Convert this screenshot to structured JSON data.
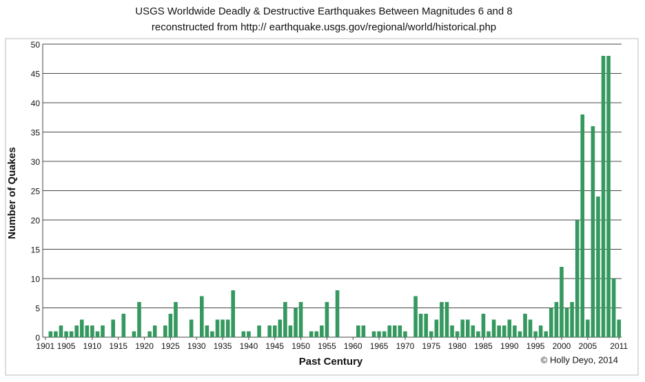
{
  "chart_data": {
    "type": "bar",
    "title": "USGS Worldwide Deadly & Destructive Earthquakes Between Magnitudes 6 and 8",
    "subtitle": "reconstructed from http:// earthquake.usgs.gov/regional/world/historical.php",
    "ylabel": "Number of Quakes",
    "xlabel": "Past Century",
    "credit": "© Holly Deyo, 2014",
    "categories": [
      "1901",
      null,
      null,
      null,
      "1905",
      null,
      null,
      null,
      null,
      "1910",
      null,
      null,
      null,
      null,
      "1915",
      null,
      null,
      null,
      null,
      "1920",
      null,
      null,
      null,
      null,
      "1925",
      null,
      null,
      null,
      null,
      "1930",
      null,
      null,
      null,
      null,
      "1935",
      null,
      null,
      null,
      null,
      "1940",
      null,
      null,
      null,
      null,
      "1945",
      null,
      null,
      null,
      null,
      "1950",
      null,
      null,
      null,
      null,
      "1955",
      null,
      null,
      null,
      null,
      "1960",
      null,
      null,
      null,
      null,
      "1965",
      null,
      null,
      null,
      null,
      "1970",
      null,
      null,
      null,
      null,
      "1975",
      null,
      null,
      null,
      null,
      "1980",
      null,
      null,
      null,
      null,
      "1985",
      null,
      null,
      null,
      null,
      "1990",
      null,
      null,
      null,
      null,
      "1995",
      null,
      null,
      null,
      null,
      "2000",
      null,
      null,
      null,
      null,
      "2005",
      null,
      null,
      null,
      null,
      null,
      "2011"
    ],
    "values": [
      0,
      1,
      1,
      2,
      1,
      1,
      2,
      3,
      2,
      2,
      1,
      2,
      0,
      3,
      0,
      4,
      0,
      1,
      6,
      0,
      1,
      2,
      0,
      2,
      4,
      6,
      0,
      0,
      3,
      0,
      7,
      2,
      1,
      3,
      3,
      3,
      8,
      0,
      1,
      1,
      0,
      2,
      0,
      2,
      2,
      3,
      6,
      2,
      5,
      6,
      0,
      1,
      1,
      2,
      6,
      0,
      8,
      0,
      0,
      0,
      2,
      2,
      0,
      1,
      1,
      1,
      2,
      2,
      2,
      1,
      0,
      7,
      4,
      4,
      1,
      3,
      6,
      6,
      2,
      1,
      3,
      3,
      2,
      1,
      4,
      1,
      3,
      2,
      2,
      3,
      2,
      1,
      4,
      3,
      1,
      2,
      1,
      5,
      6,
      12,
      5,
      6,
      20,
      38,
      3,
      36,
      24,
      48,
      48,
      10,
      3
    ],
    "color": "#35995f",
    "ylim": [
      0,
      50
    ],
    "yticks": [
      0,
      5,
      10,
      15,
      20,
      25,
      30,
      35,
      40,
      45,
      50
    ],
    "grid": true
  }
}
